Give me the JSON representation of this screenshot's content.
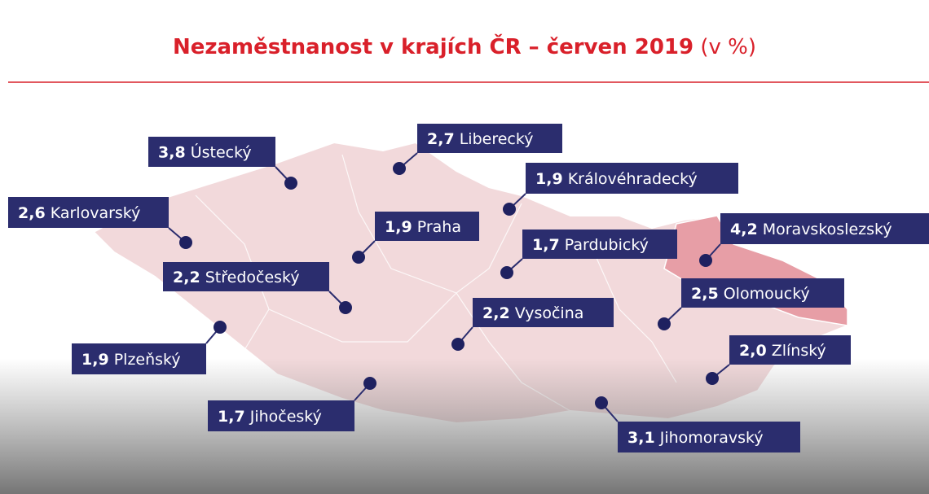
{
  "title": "Nezaměstnanost v krajích ČR – červen 2019",
  "unit": "(v %)",
  "regions": [
    {
      "value": "3,8",
      "name": "Ústecký"
    },
    {
      "value": "2,7",
      "name": "Liberecký"
    },
    {
      "value": "1,9",
      "name": "Královéhradecký"
    },
    {
      "value": "2,6",
      "name": "Karlovarský"
    },
    {
      "value": "1,9",
      "name": "Praha"
    },
    {
      "value": "1,7",
      "name": "Pardubický"
    },
    {
      "value": "4,2",
      "name": "Moravskoslezský"
    },
    {
      "value": "2,2",
      "name": "Středočeský"
    },
    {
      "value": "2,5",
      "name": "Olomoucký"
    },
    {
      "value": "2,2",
      "name": "Vysočina"
    },
    {
      "value": "1,9",
      "name": "Plzeňský"
    },
    {
      "value": "2,0",
      "name": "Zlínský"
    },
    {
      "value": "1,7",
      "name": "Jihočeský"
    },
    {
      "value": "3,1",
      "name": "Jihomoravský"
    }
  ]
}
